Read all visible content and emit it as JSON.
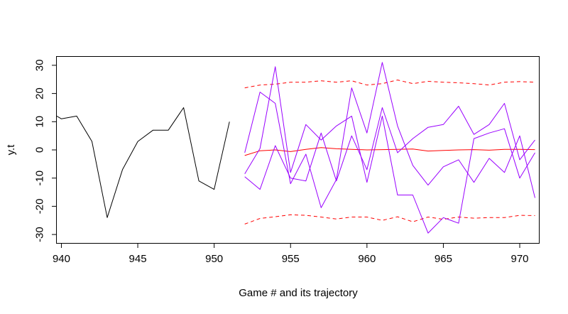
{
  "chart_data": {
    "type": "line",
    "title": "",
    "xlabel": "Game # and its trajectory",
    "ylabel": "y.t",
    "xlim": [
      939.7,
      971.3
    ],
    "ylim": [
      -33,
      33
    ],
    "x_ticks": [
      940,
      945,
      950,
      955,
      960,
      965,
      970
    ],
    "y_ticks": [
      -30,
      -20,
      -10,
      0,
      10,
      20,
      30
    ],
    "grid": false,
    "legend": "none",
    "colors": {
      "observed": "#000000",
      "forecast_mean": "#ff0000",
      "forecast_bounds": "#ff0000",
      "trajectories": "#9900ff"
    },
    "series": [
      {
        "role": "observed",
        "style": "solid",
        "x": [
          939.7,
          940,
          941,
          942,
          943,
          944,
          945,
          946,
          947,
          948,
          949,
          950,
          951
        ],
        "values": [
          12,
          11,
          12,
          3,
          -24,
          -7,
          3,
          7,
          7,
          15,
          -11,
          -14,
          10
        ]
      },
      {
        "role": "forecast_mean",
        "style": "solid",
        "x": [
          952,
          953,
          954,
          955,
          956,
          957,
          958,
          959,
          960,
          961,
          962,
          963,
          964,
          965,
          966,
          967,
          968,
          969,
          970,
          971
        ],
        "values": [
          -2,
          -0.3,
          0,
          -0.6,
          0.2,
          0.8,
          0.4,
          0.2,
          0,
          0.1,
          0.2,
          0.3,
          -0.4,
          -0.2,
          0,
          0.1,
          -0.1,
          0.2,
          0.2,
          0.1
        ]
      },
      {
        "role": "forecast_bounds",
        "style": "dashed",
        "x": [
          952,
          953,
          954,
          955,
          956,
          957,
          958,
          959,
          960,
          961,
          962,
          963,
          964,
          965,
          966,
          967,
          968,
          969,
          970,
          971
        ],
        "values": [
          22,
          23,
          23.3,
          24,
          24,
          24.5,
          24,
          24.5,
          23,
          23.5,
          24.8,
          23.5,
          24.3,
          24,
          23.8,
          23.5,
          23,
          24,
          24.2,
          24
        ]
      },
      {
        "role": "forecast_bounds",
        "style": "dashed",
        "x": [
          952,
          953,
          954,
          955,
          956,
          957,
          958,
          959,
          960,
          961,
          962,
          963,
          964,
          965,
          966,
          967,
          968,
          969,
          970,
          971
        ],
        "values": [
          -26.3,
          -24.3,
          -23.7,
          -23,
          -23.2,
          -23.8,
          -24.5,
          -23.8,
          -23.8,
          -25,
          -23.7,
          -25.5,
          -23.8,
          -24.6,
          -23.8,
          -24.2,
          -24,
          -24,
          -23.2,
          -23.3
        ]
      },
      {
        "role": "trajectory",
        "style": "solid",
        "x": [
          952,
          953,
          954,
          955,
          956,
          957,
          958,
          959,
          960,
          961,
          962,
          963,
          964,
          965,
          966,
          967,
          968,
          969,
          970,
          971
        ],
        "values": [
          -1,
          20.5,
          16.5,
          -12,
          -1.5,
          -20.5,
          -10.5,
          22,
          6,
          31,
          8.5,
          -5.5,
          -12.5,
          -6,
          -3.5,
          -11.5,
          -3,
          -8,
          5,
          -17
        ]
      },
      {
        "role": "trajectory",
        "style": "solid",
        "x": [
          952,
          953,
          954,
          955,
          956,
          957,
          958,
          959,
          960,
          961,
          962,
          963,
          964,
          965,
          966,
          967,
          968,
          969,
          970,
          971
        ],
        "values": [
          -9.5,
          -14,
          1.5,
          -10,
          -11,
          6,
          -11,
          5,
          -7,
          15,
          -1,
          4,
          8,
          9,
          15.5,
          5.5,
          9,
          16.5,
          -3.5,
          3.5
        ]
      },
      {
        "role": "trajectory",
        "style": "solid",
        "x": [
          952,
          953,
          954,
          955,
          956,
          957,
          958,
          959,
          960,
          961,
          962,
          963,
          964,
          965,
          966,
          967,
          968,
          969,
          970,
          971
        ],
        "values": [
          -8.5,
          0.5,
          29.5,
          -8,
          9,
          3.5,
          8.5,
          12,
          -11.5,
          12,
          -16,
          -16,
          -29.5,
          -24,
          -26,
          4,
          6,
          7.5,
          -10,
          -1
        ]
      }
    ]
  }
}
